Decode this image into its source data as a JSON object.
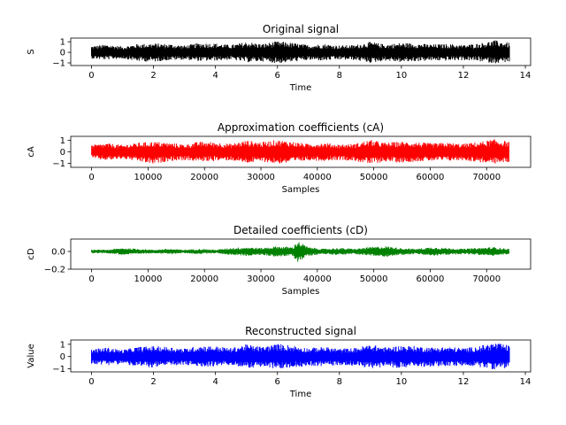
{
  "chart_data": [
    {
      "type": "line",
      "title": "Original signal",
      "xlabel": "Time",
      "ylabel": "S",
      "color": "#000000",
      "xlim": [
        -0.67,
        14.17
      ],
      "ylim": [
        -1.25,
        1.35
      ],
      "xticks": [
        0,
        2,
        4,
        6,
        8,
        10,
        12,
        14
      ],
      "xtick_labels": [
        "0",
        "2",
        "4",
        "6",
        "8",
        "10",
        "12",
        "14"
      ],
      "yticks": [
        -1,
        0,
        1
      ],
      "ytick_labels": [
        "−1",
        "0",
        "1"
      ],
      "x_range": [
        0,
        13.5
      ],
      "envelope_x": [
        0,
        0.5,
        1,
        1.5,
        2,
        2.5,
        3,
        3.5,
        4,
        4.5,
        5,
        5.5,
        6,
        6.5,
        7,
        7.5,
        8,
        8.5,
        9,
        9.5,
        10,
        10.5,
        11,
        11.5,
        12,
        12.5,
        13,
        13.5
      ],
      "envelope_upper": [
        0.6,
        0.75,
        0.55,
        0.8,
        0.85,
        0.8,
        0.65,
        0.9,
        0.85,
        0.7,
        1.0,
        0.8,
        1.05,
        0.9,
        0.7,
        0.8,
        0.65,
        0.7,
        1.0,
        0.75,
        0.9,
        0.85,
        0.75,
        0.8,
        0.7,
        0.85,
        1.15,
        0.9
      ],
      "envelope_lower": [
        -0.6,
        -0.7,
        -0.6,
        -0.85,
        -0.9,
        -0.75,
        -0.7,
        -0.85,
        -0.8,
        -0.7,
        -0.95,
        -0.85,
        -1.05,
        -0.9,
        -0.75,
        -0.8,
        -0.7,
        -0.75,
        -1.0,
        -0.8,
        -0.95,
        -0.85,
        -0.8,
        -0.8,
        -0.75,
        -0.85,
        -1.05,
        -0.9
      ]
    },
    {
      "type": "line",
      "title": "Approximation coefficients (cA)",
      "xlabel": "Samples",
      "ylabel": "cA",
      "color": "#ff0000",
      "xlim": [
        -3700,
        77800
      ],
      "ylim": [
        -1.35,
        1.35
      ],
      "xticks": [
        0,
        10000,
        20000,
        30000,
        40000,
        50000,
        60000,
        70000
      ],
      "xtick_labels": [
        "0",
        "10000",
        "20000",
        "30000",
        "40000",
        "50000",
        "60000",
        "70000"
      ],
      "yticks": [
        -1,
        0,
        1
      ],
      "ytick_labels": [
        "−1",
        "0",
        "1"
      ],
      "x_range": [
        0,
        74000
      ],
      "envelope_x": [
        0,
        2740,
        5480,
        8220,
        10960,
        13700,
        16440,
        19180,
        21920,
        24660,
        27400,
        30140,
        32880,
        35620,
        38360,
        41100,
        43840,
        46580,
        49320,
        52060,
        54800,
        57540,
        60280,
        63020,
        65760,
        68500,
        71240,
        74000
      ],
      "envelope_upper": [
        0.6,
        0.75,
        0.6,
        0.8,
        0.9,
        0.8,
        0.65,
        0.9,
        0.85,
        0.7,
        1.0,
        0.85,
        1.05,
        0.9,
        0.7,
        0.8,
        0.65,
        0.7,
        1.05,
        0.8,
        0.9,
        0.85,
        0.75,
        0.8,
        0.7,
        0.85,
        1.1,
        0.9
      ],
      "envelope_lower": [
        -0.6,
        -0.75,
        -0.6,
        -0.85,
        -1.1,
        -0.8,
        -0.75,
        -0.85,
        -0.8,
        -0.75,
        -1.0,
        -0.85,
        -1.05,
        -0.95,
        -0.75,
        -0.8,
        -0.7,
        -0.8,
        -1.1,
        -0.85,
        -0.95,
        -0.85,
        -0.8,
        -0.8,
        -0.75,
        -0.9,
        -1.05,
        -0.9
      ]
    },
    {
      "type": "line",
      "title": "Detailed coefficients (cD)",
      "xlabel": "Samples",
      "ylabel": "cD",
      "color": "#008000",
      "xlim": [
        -3700,
        77800
      ],
      "ylim": [
        -0.2,
        0.14
      ],
      "xticks": [
        0,
        10000,
        20000,
        30000,
        40000,
        50000,
        60000,
        70000
      ],
      "xtick_labels": [
        "0",
        "10000",
        "20000",
        "30000",
        "40000",
        "50000",
        "60000",
        "70000"
      ],
      "yticks": [
        -0.2,
        0.0
      ],
      "ytick_labels": [
        "−0.2",
        "0.0"
      ],
      "x_range": [
        0,
        74000
      ],
      "envelope_x": [
        0,
        2740,
        5480,
        8220,
        10960,
        13700,
        16440,
        19180,
        21920,
        24660,
        27400,
        30140,
        32880,
        35620,
        36500,
        38360,
        41100,
        43840,
        46580,
        49320,
        52060,
        54800,
        57540,
        60280,
        63020,
        65760,
        68500,
        71240,
        74000
      ],
      "envelope_upper": [
        0.02,
        0.02,
        0.04,
        0.03,
        0.02,
        0.03,
        0.02,
        0.03,
        0.02,
        0.04,
        0.05,
        0.04,
        0.06,
        0.05,
        0.12,
        0.05,
        0.03,
        0.04,
        0.03,
        0.05,
        0.06,
        0.04,
        0.03,
        0.05,
        0.04,
        0.03,
        0.04,
        0.05,
        0.03
      ],
      "envelope_lower": [
        -0.02,
        -0.02,
        -0.04,
        -0.03,
        -0.02,
        -0.03,
        -0.02,
        -0.03,
        -0.02,
        -0.04,
        -0.05,
        -0.04,
        -0.06,
        -0.05,
        -0.12,
        -0.05,
        -0.03,
        -0.04,
        -0.03,
        -0.05,
        -0.06,
        -0.04,
        -0.03,
        -0.05,
        -0.04,
        -0.03,
        -0.04,
        -0.05,
        -0.03
      ]
    },
    {
      "type": "line",
      "title": "Reconstructed signal",
      "xlabel": "Time",
      "ylabel": "Value",
      "color": "#0000ff",
      "xlim": [
        -0.67,
        14.17
      ],
      "ylim": [
        -1.25,
        1.35
      ],
      "xticks": [
        0,
        2,
        4,
        6,
        8,
        10,
        12,
        14
      ],
      "xtick_labels": [
        "0",
        "2",
        "4",
        "6",
        "8",
        "10",
        "12",
        "14"
      ],
      "yticks": [
        -1,
        0,
        1
      ],
      "ytick_labels": [
        "−1",
        "0",
        "1"
      ],
      "x_range": [
        0,
        13.5
      ],
      "envelope_x": [
        0,
        0.5,
        1,
        1.5,
        2,
        2.5,
        3,
        3.5,
        4,
        4.5,
        5,
        5.5,
        6,
        6.5,
        7,
        7.5,
        8,
        8.5,
        9,
        9.5,
        10,
        10.5,
        11,
        11.5,
        12,
        12.5,
        13,
        13.5
      ],
      "envelope_upper": [
        0.6,
        0.75,
        0.55,
        0.8,
        0.85,
        0.8,
        0.65,
        0.9,
        0.85,
        0.7,
        1.0,
        0.8,
        1.05,
        0.9,
        0.7,
        0.8,
        0.65,
        0.7,
        1.0,
        0.75,
        0.9,
        0.85,
        0.75,
        0.8,
        0.7,
        0.85,
        1.15,
        0.9
      ],
      "envelope_lower": [
        -0.6,
        -0.7,
        -0.6,
        -0.85,
        -0.9,
        -0.75,
        -0.7,
        -0.85,
        -0.8,
        -0.7,
        -0.95,
        -0.85,
        -1.05,
        -0.9,
        -0.75,
        -0.8,
        -0.7,
        -0.75,
        -1.0,
        -0.8,
        -0.95,
        -0.85,
        -0.8,
        -0.8,
        -0.75,
        -0.85,
        -1.05,
        -0.9
      ]
    }
  ]
}
